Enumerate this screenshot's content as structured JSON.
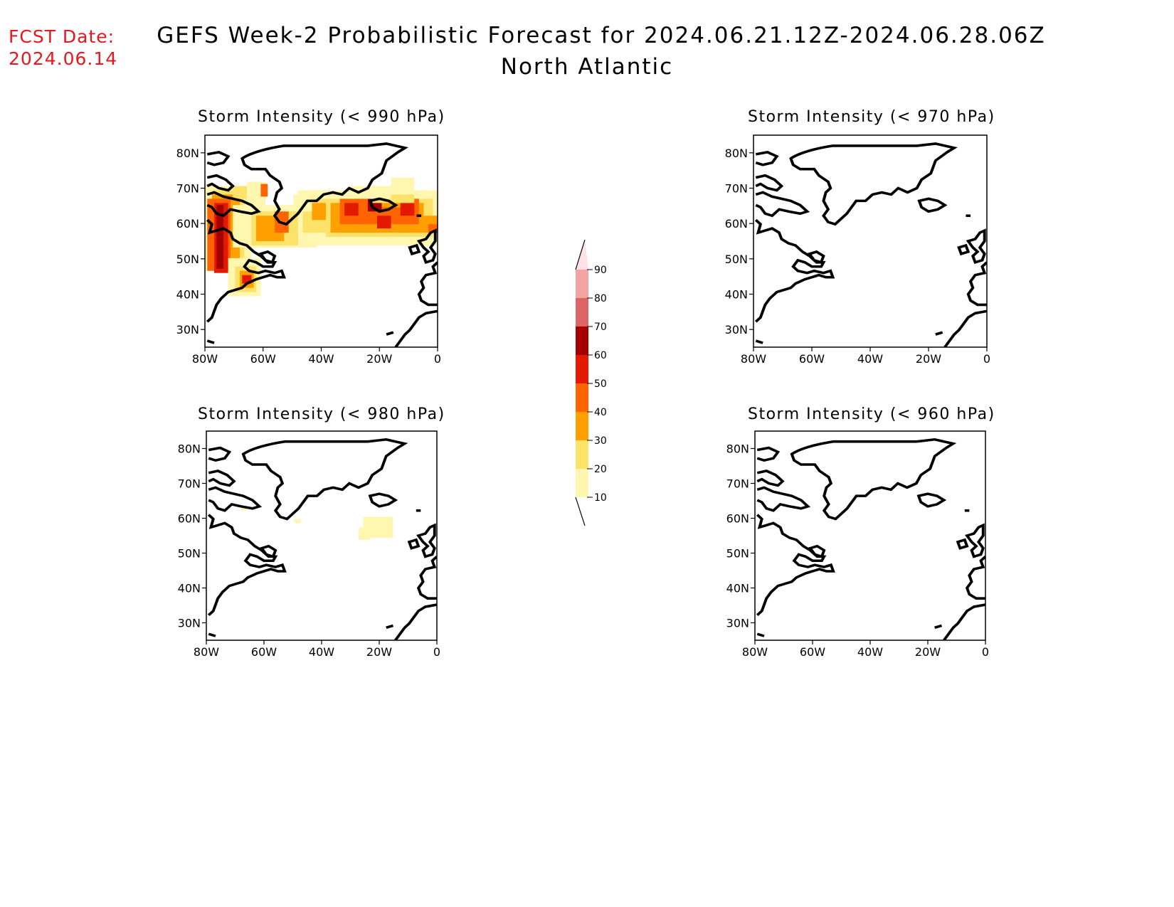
{
  "header": {
    "fcst_label": "FCST Date:",
    "fcst_date": "2024.06.14",
    "title": "GEFS Week-2 Probabilistic Forecast for 2024.06.21.12Z-2024.06.28.06Z",
    "region": "North Atlantic"
  },
  "panels": [
    {
      "id": "p990",
      "title": "Storm Intensity (< 990 hPa)"
    },
    {
      "id": "p970",
      "title": "Storm Intensity (< 970 hPa)"
    },
    {
      "id": "p980",
      "title": "Storm Intensity (< 980 hPa)"
    },
    {
      "id": "p960",
      "title": "Storm Intensity (< 960 hPa)"
    }
  ],
  "axes": {
    "lat_labels": [
      "80N",
      "70N",
      "60N",
      "50N",
      "40N",
      "30N"
    ],
    "lat_values": [
      80,
      70,
      60,
      50,
      40,
      30
    ],
    "lon_labels": [
      "80W",
      "60W",
      "40W",
      "20W",
      "0"
    ],
    "lon_values": [
      -80,
      -60,
      -40,
      -20,
      0
    ],
    "lat_range": [
      25,
      85
    ],
    "lon_range": [
      -80,
      0
    ]
  },
  "colorbar": {
    "levels": [
      "10",
      "20",
      "30",
      "40",
      "50",
      "60",
      "70",
      "80",
      "90"
    ],
    "colors": [
      "#fff7b0",
      "#fde26a",
      "#ff9f00",
      "#ff6400",
      "#e31a00",
      "#a50000",
      "#dc6464",
      "#f4a3a3",
      "#ffe0e5"
    ]
  }
}
